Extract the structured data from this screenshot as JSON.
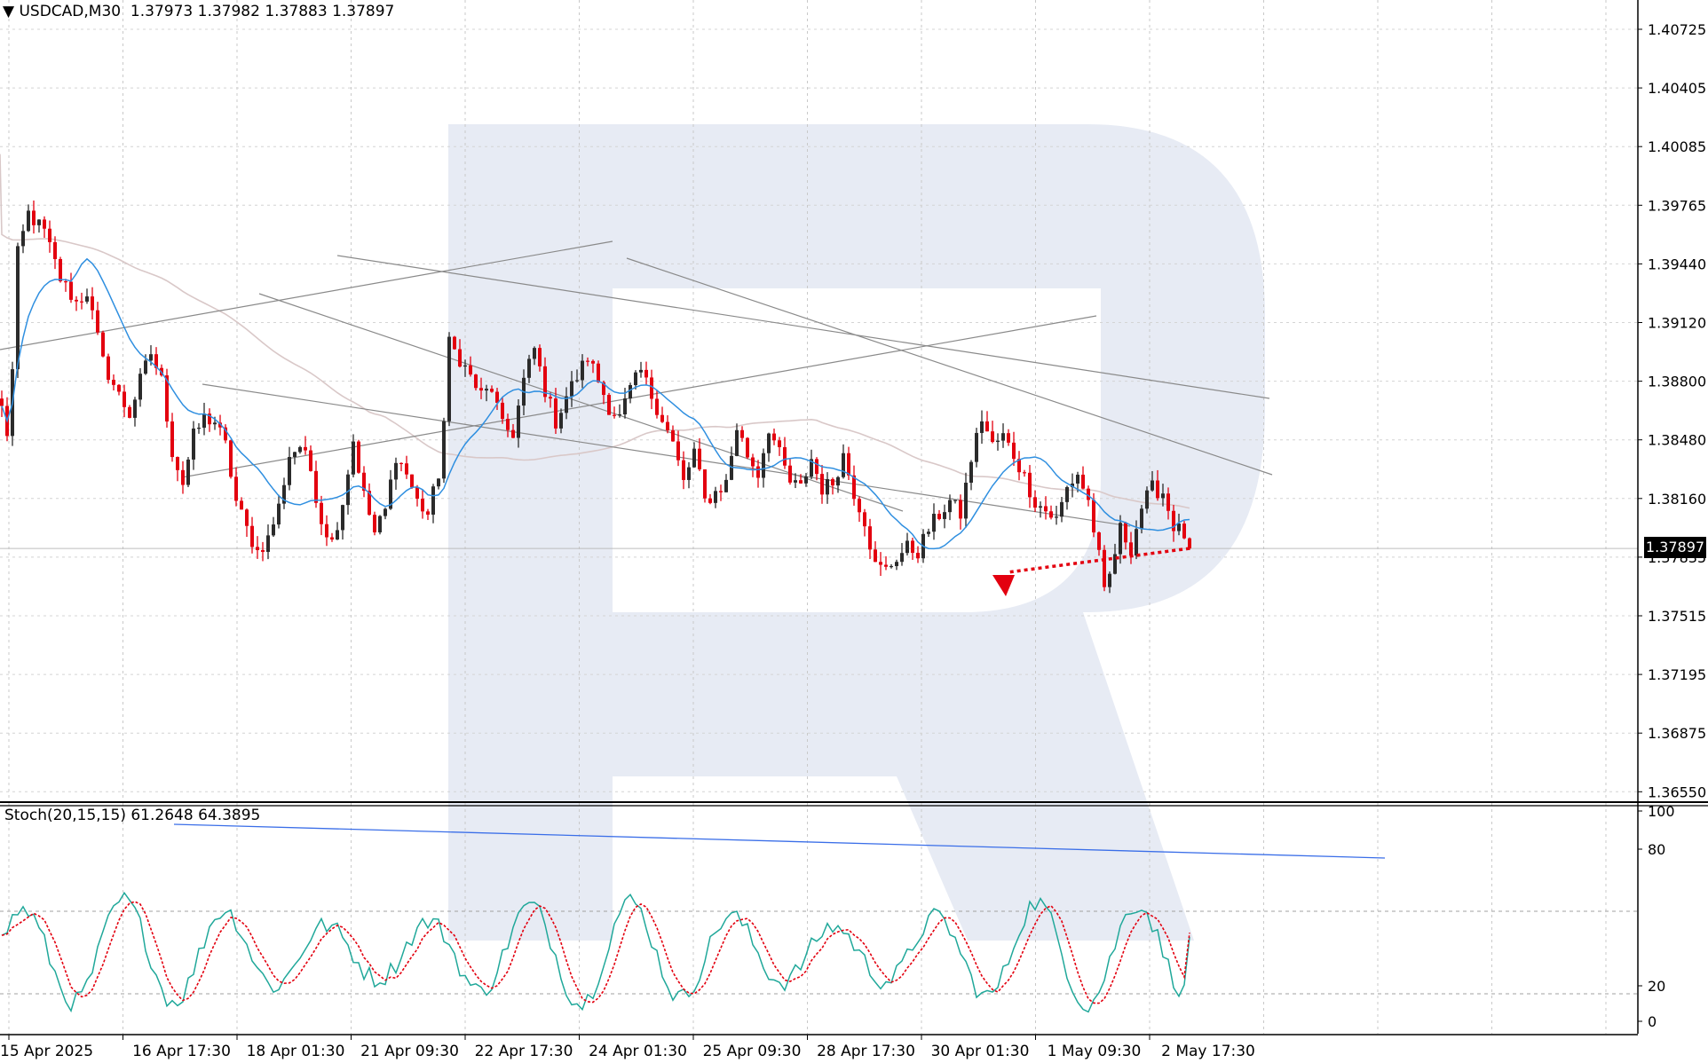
{
  "header": {
    "triangle": "▼",
    "symbol": "USDCAD,M30",
    "open": "1.37973",
    "high": "1.37982",
    "low": "1.37883",
    "close": "1.37897"
  },
  "current_price_label": "1.37897",
  "stoch_header": {
    "name": "Stoch(20,15,15)",
    "main": "61.2648",
    "signal": "64.3895"
  },
  "colors": {
    "bull": "#2b2b2b",
    "bear": "#e3000f",
    "ma_fast": "#2f8fe0",
    "ma_slow": "#d9c8c8",
    "stoch_main": "#20a89a",
    "stoch_signal": "#e3000f",
    "trend": "#8a8a8a",
    "stoch_trend": "#3a6ee8",
    "watermark": "#e7ebf4"
  },
  "chart_data": [
    {
      "type": "candlestick",
      "symbol": "USDCAD",
      "timeframe": "M30",
      "ylim": [
        1.3655,
        1.4085
      ],
      "y_ticks": [
        "1.40725",
        "1.40405",
        "1.40085",
        "1.39765",
        "1.39440",
        "1.39120",
        "1.38800",
        "1.38480",
        "1.38160",
        "1.37835",
        "1.37515",
        "1.37195",
        "1.36875",
        "1.36550"
      ],
      "x_ticks": [
        "15 Apr 2025",
        "16 Apr 17:30",
        "18 Apr 01:30",
        "21 Apr 09:30",
        "22 Apr 17:30",
        "24 Apr 01:30",
        "25 Apr 09:30",
        "28 Apr 17:30",
        "30 Apr 01:30",
        "1 May 09:30",
        "2 May 17:30"
      ],
      "last_price": 1.37897,
      "path": [
        [
          0,
          1.3865
        ],
        [
          1,
          1.3852
        ],
        [
          2,
          1.3885
        ],
        [
          3,
          1.3948
        ],
        [
          5,
          1.397
        ],
        [
          8,
          1.396
        ],
        [
          11,
          1.3935
        ],
        [
          14,
          1.3922
        ],
        [
          16,
          1.3928
        ],
        [
          19,
          1.389
        ],
        [
          22,
          1.3872
        ],
        [
          24,
          1.3862
        ],
        [
          26,
          1.388
        ],
        [
          28,
          1.3895
        ],
        [
          30,
          1.388
        ],
        [
          32,
          1.3842
        ],
        [
          34,
          1.3825
        ],
        [
          36,
          1.385
        ],
        [
          38,
          1.386
        ],
        [
          40,
          1.3858
        ],
        [
          42,
          1.3845
        ],
        [
          44,
          1.3815
        ],
        [
          46,
          1.38
        ],
        [
          48,
          1.3788
        ],
        [
          50,
          1.3795
        ],
        [
          52,
          1.3812
        ],
        [
          54,
          1.384
        ],
        [
          56,
          1.3845
        ],
        [
          58,
          1.3832
        ],
        [
          60,
          1.3805
        ],
        [
          62,
          1.3793
        ],
        [
          64,
          1.3815
        ],
        [
          66,
          1.3848
        ],
        [
          68,
          1.3818
        ],
        [
          70,
          1.3798
        ],
        [
          72,
          1.381
        ],
        [
          74,
          1.384
        ],
        [
          76,
          1.383
        ],
        [
          78,
          1.3815
        ],
        [
          80,
          1.3808
        ],
        [
          82,
          1.383
        ],
        [
          83,
          1.3858
        ],
        [
          84,
          1.39
        ],
        [
          86,
          1.3892
        ],
        [
          88,
          1.3882
        ],
        [
          90,
          1.3872
        ],
        [
          92,
          1.3876
        ],
        [
          94,
          1.3855
        ],
        [
          96,
          1.3852
        ],
        [
          98,
          1.388
        ],
        [
          100,
          1.3897
        ],
        [
          102,
          1.3875
        ],
        [
          104,
          1.3858
        ],
        [
          106,
          1.3872
        ],
        [
          108,
          1.3882
        ],
        [
          110,
          1.3893
        ],
        [
          112,
          1.388
        ],
        [
          114,
          1.3866
        ],
        [
          116,
          1.386
        ],
        [
          118,
          1.3875
        ],
        [
          120,
          1.3885
        ],
        [
          122,
          1.3872
        ],
        [
          124,
          1.386
        ],
        [
          126,
          1.3846
        ],
        [
          128,
          1.3825
        ],
        [
          130,
          1.3842
        ],
        [
          132,
          1.3815
        ],
        [
          134,
          1.382
        ],
        [
          136,
          1.3825
        ],
        [
          138,
          1.3855
        ],
        [
          140,
          1.384
        ],
        [
          142,
          1.383
        ],
        [
          144,
          1.3855
        ],
        [
          146,
          1.384
        ],
        [
          148,
          1.3825
        ],
        [
          150,
          1.3822
        ],
        [
          152,
          1.3838
        ],
        [
          154,
          1.3822
        ],
        [
          156,
          1.3825
        ],
        [
          158,
          1.384
        ],
        [
          160,
          1.382
        ],
        [
          162,
          1.3805
        ],
        [
          164,
          1.378
        ],
        [
          166,
          1.3778
        ],
        [
          168,
          1.3785
        ],
        [
          170,
          1.379
        ],
        [
          172,
          1.3788
        ],
        [
          174,
          1.38
        ],
        [
          176,
          1.3808
        ],
        [
          178,
          1.3815
        ],
        [
          180,
          1.3808
        ],
        [
          182,
          1.3838
        ],
        [
          184,
          1.386
        ],
        [
          186,
          1.3845
        ],
        [
          188,
          1.385
        ],
        [
          190,
          1.384
        ],
        [
          192,
          1.3828
        ],
        [
          194,
          1.3815
        ],
        [
          196,
          1.381
        ],
        [
          198,
          1.3805
        ],
        [
          200,
          1.3822
        ],
        [
          202,
          1.383
        ],
        [
          204,
          1.3815
        ],
        [
          206,
          1.3785
        ],
        [
          207,
          1.3765
        ],
        [
          208,
          1.3775
        ],
        [
          210,
          1.38
        ],
        [
          212,
          1.379
        ],
        [
          214,
          1.3812
        ],
        [
          216,
          1.3822
        ],
        [
          218,
          1.382
        ],
        [
          220,
          1.3802
        ],
        [
          222,
          1.3797
        ],
        [
          223,
          1.379
        ]
      ]
    },
    {
      "type": "line",
      "title": "Stoch(20,15,15)",
      "ylim": [
        0,
        100
      ],
      "y_ticks": [
        "100",
        "80",
        "20",
        "0"
      ],
      "levels": [
        80,
        20
      ],
      "last_values": {
        "main": 61.2648,
        "signal": 64.3895
      }
    }
  ]
}
